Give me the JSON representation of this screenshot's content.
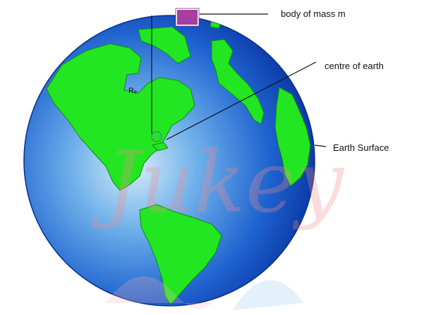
{
  "diagram": {
    "labels": {
      "body": "body of mass m",
      "centre": "centre of earth",
      "surface": "Earth Surface",
      "radius": "Rₑ"
    },
    "watermark": "Jukey",
    "colors": {
      "ocean_light": "#cfe9f7",
      "ocean_mid": "#3a86e0",
      "ocean_dark": "#0a3fb0",
      "land": "#1fe31f",
      "land_edge": "#0f8a10",
      "mass_block": "#a53fa0",
      "lines": "#111111",
      "watermark_red": "#f08080",
      "watermark_blue": "#4aa3e8"
    }
  }
}
